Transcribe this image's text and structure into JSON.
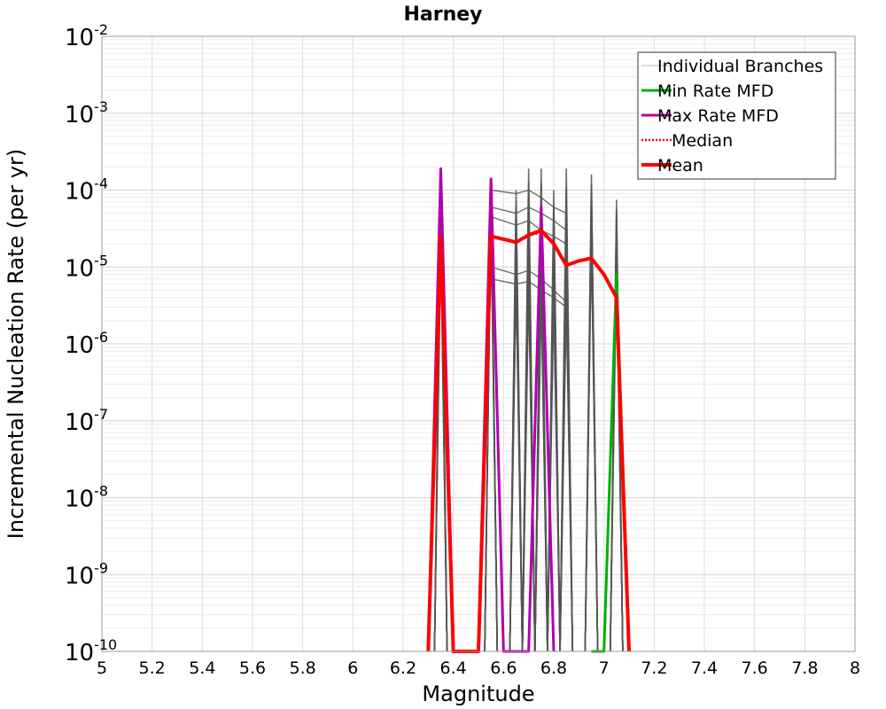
{
  "chart_data": {
    "type": "line",
    "title": "Harney",
    "xlabel": "Magnitude",
    "ylabel": "Incremental Nucleation Rate (per yr)",
    "xlim": [
      5,
      8
    ],
    "ylim_log10": [
      -10,
      -2
    ],
    "y_scale": "log",
    "grid": true,
    "x_ticks": [
      "5",
      "5.2",
      "5.4",
      "5.6",
      "5.8",
      "6",
      "6.2",
      "6.4",
      "6.6",
      "6.8",
      "7",
      "7.2",
      "7.4",
      "7.6",
      "7.8",
      "8"
    ],
    "x_tick_values": [
      5,
      5.2,
      5.4,
      5.6,
      5.8,
      6,
      6.2,
      6.4,
      6.6,
      6.8,
      7,
      7.2,
      7.4,
      7.6,
      7.8,
      8
    ],
    "y_ticks": [
      {
        "base": "10",
        "exp": "-2",
        "value": -2
      },
      {
        "base": "10",
        "exp": "-3",
        "value": -3
      },
      {
        "base": "10",
        "exp": "-4",
        "value": -4
      },
      {
        "base": "10",
        "exp": "-5",
        "value": -5
      },
      {
        "base": "10",
        "exp": "-6",
        "value": -6
      },
      {
        "base": "10",
        "exp": "-7",
        "value": -7
      },
      {
        "base": "10",
        "exp": "-8",
        "value": -8
      },
      {
        "base": "10",
        "exp": "-9",
        "value": -9
      },
      {
        "base": "10",
        "exp": "-10",
        "value": -10
      }
    ],
    "legend_position": "top-right",
    "legend": [
      {
        "label": "Individual Branches",
        "color": "#b4b4b4",
        "style": "thin"
      },
      {
        "label": "Min Rate MFD",
        "color": "#00b000",
        "style": "solid"
      },
      {
        "label": "Max Rate MFD",
        "color": "#b000b0",
        "style": "solid"
      },
      {
        "label": "Median",
        "color": "#ff0000",
        "style": "dotted"
      },
      {
        "label": "Mean",
        "color": "#ff0000",
        "style": "thick"
      }
    ],
    "branch_peaks": [
      {
        "m": 6.35,
        "min": 1.8e-05,
        "max": 0.00019,
        "count": 8
      },
      {
        "m": 6.55,
        "min": 4e-05,
        "max": 0.00014,
        "count": 8
      },
      {
        "m": 6.65,
        "min": 6e-06,
        "max": 0.0001,
        "count": 10
      },
      {
        "m": 6.7,
        "min": 5e-06,
        "max": 0.00019,
        "count": 10
      },
      {
        "m": 6.75,
        "min": 4e-06,
        "max": 0.00019,
        "count": 10
      },
      {
        "m": 6.8,
        "min": 3.5e-06,
        "max": 0.0001,
        "count": 8
      },
      {
        "m": 6.85,
        "min": 3e-06,
        "max": 0.00019,
        "count": 8
      },
      {
        "m": 6.95,
        "min": 2e-05,
        "max": 0.00016,
        "count": 8
      },
      {
        "m": 7.05,
        "min": 1e-05,
        "max": 7.5e-05,
        "count": 8
      }
    ],
    "series": [
      {
        "name": "Min Rate MFD",
        "color": "#00b000",
        "x": [
          6.95,
          7.0,
          7.05,
          7.1
        ],
        "y": [
          1e-10,
          1e-10,
          8e-06,
          1e-10
        ]
      },
      {
        "name": "Max Rate MFD",
        "color": "#b000b0",
        "x": [
          6.3,
          6.35,
          6.4,
          6.5,
          6.55,
          6.6,
          6.7,
          6.75,
          6.8
        ],
        "y": [
          1e-10,
          0.00019,
          1e-10,
          1e-10,
          0.00014,
          1e-10,
          1e-10,
          6e-05,
          1e-10
        ]
      },
      {
        "name": "Median",
        "color": "#ff0000",
        "x": [
          6.3,
          6.35,
          6.4,
          6.5,
          6.55,
          6.6,
          6.65,
          6.7,
          6.75,
          6.8,
          6.85,
          6.9,
          6.95,
          7.0,
          7.05,
          7.1
        ],
        "y": [
          1e-10,
          2.4e-05,
          1e-10,
          1e-10,
          2.5e-05,
          2.3e-05,
          2.1e-05,
          2.6e-05,
          2.8e-05,
          2e-05,
          1.05e-05,
          1.2e-05,
          1.3e-05,
          8e-06,
          4e-06,
          1e-10
        ]
      },
      {
        "name": "Mean",
        "color": "#ff0000",
        "x": [
          6.3,
          6.35,
          6.4,
          6.5,
          6.55,
          6.6,
          6.65,
          6.7,
          6.75,
          6.8,
          6.85,
          6.9,
          6.95,
          7.0,
          7.05,
          7.1
        ],
        "y": [
          1e-10,
          2.5e-05,
          1e-10,
          1e-10,
          2.5e-05,
          2.3e-05,
          2.1e-05,
          2.6e-05,
          3e-05,
          2e-05,
          1.05e-05,
          1.2e-05,
          1.3e-05,
          8e-06,
          4e-06,
          1e-10
        ]
      }
    ]
  }
}
